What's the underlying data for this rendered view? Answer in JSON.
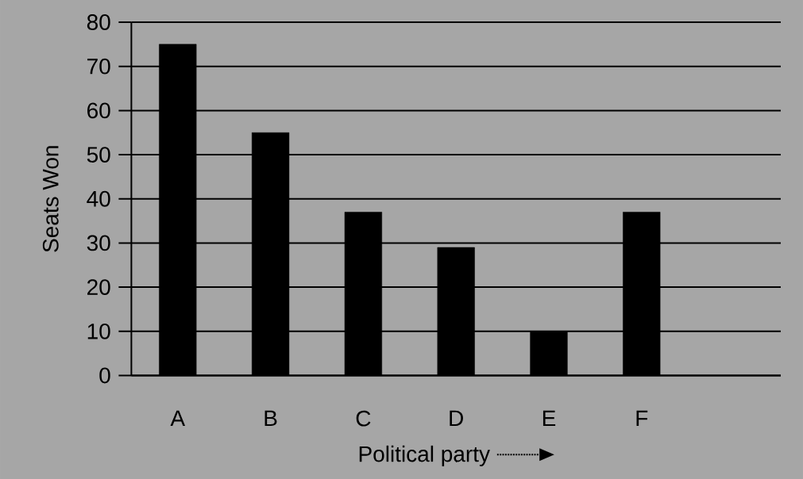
{
  "chart_data": {
    "type": "bar",
    "xlabel": "Political party",
    "ylabel": "Seats Won",
    "categories": [
      "A",
      "B",
      "C",
      "D",
      "E",
      "F"
    ],
    "values": [
      75,
      55,
      37,
      29,
      10,
      37
    ],
    "color": "#000000",
    "ylim": [
      0,
      80
    ],
    "yticks": [
      0,
      10,
      20,
      30,
      40,
      50,
      60,
      70,
      80
    ],
    "grid": "y"
  }
}
